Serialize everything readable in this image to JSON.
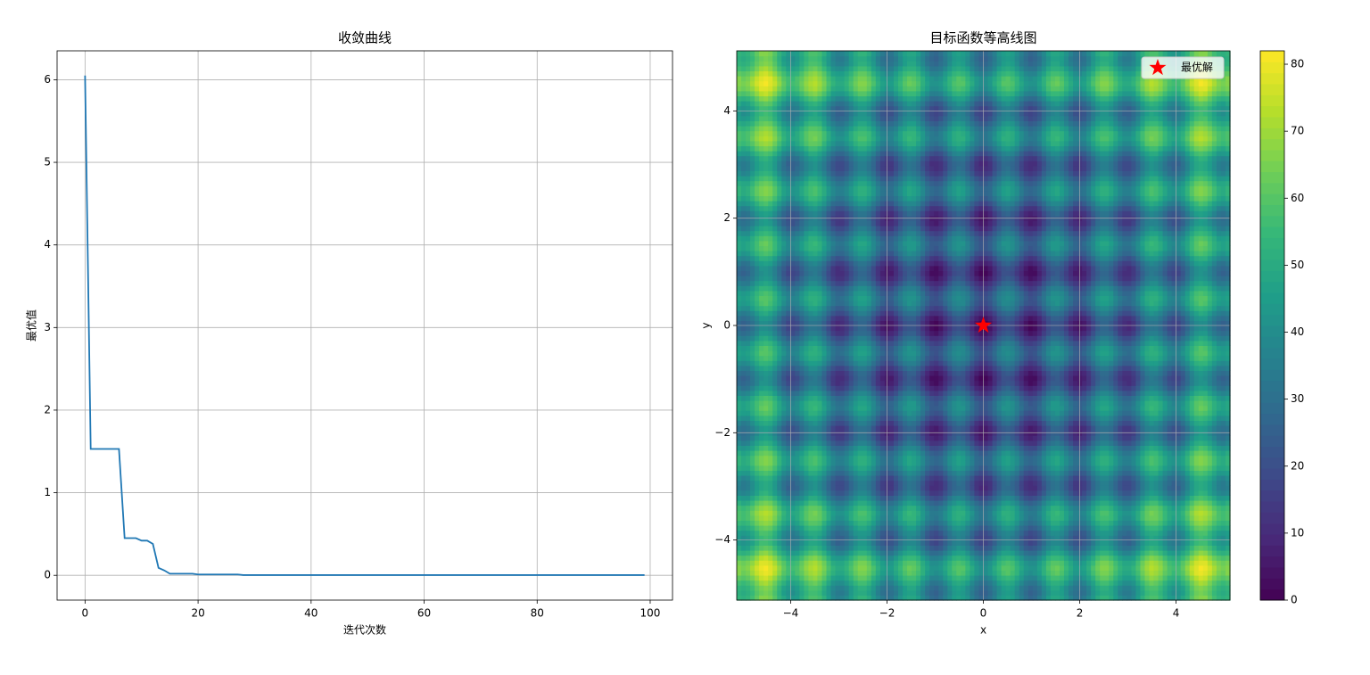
{
  "chart_data": [
    {
      "type": "line",
      "title": "收敛曲线",
      "xlabel": "迭代次数",
      "ylabel": "最优值",
      "color": "#1f77b4",
      "grid": true,
      "xlim": [
        -4.95,
        103.95
      ],
      "ylim": [
        -0.3,
        6.35
      ],
      "xticks": [
        0,
        20,
        40,
        60,
        80,
        100
      ],
      "yticks": [
        0,
        1,
        2,
        3,
        4,
        5,
        6
      ],
      "x": [
        0,
        1,
        2,
        3,
        4,
        5,
        6,
        7,
        8,
        9,
        10,
        11,
        12,
        13,
        14,
        15,
        16,
        17,
        18,
        19,
        20,
        21,
        22,
        23,
        24,
        25,
        26,
        27,
        28,
        29,
        30,
        31,
        32,
        33,
        34,
        35,
        36,
        37,
        38,
        39,
        40,
        41,
        42,
        43,
        44,
        45,
        46,
        47,
        48,
        49,
        50,
        51,
        52,
        53,
        54,
        55,
        56,
        57,
        58,
        59,
        60,
        61,
        62,
        63,
        64,
        65,
        66,
        67,
        68,
        69,
        70,
        71,
        72,
        73,
        74,
        75,
        76,
        77,
        78,
        79,
        80,
        81,
        82,
        83,
        84,
        85,
        86,
        87,
        88,
        89,
        90,
        91,
        92,
        93,
        94,
        95,
        96,
        97,
        98,
        99
      ],
      "values": [
        6.05,
        1.53,
        1.53,
        1.53,
        1.53,
        1.53,
        1.53,
        0.45,
        0.45,
        0.45,
        0.42,
        0.42,
        0.38,
        0.09,
        0.06,
        0.02,
        0.02,
        0.02,
        0.02,
        0.02,
        0.01,
        0.01,
        0.01,
        0.01,
        0.01,
        0.01,
        0.01,
        0.01,
        0.003,
        0.003,
        0.003,
        0.003,
        0.003,
        0.003,
        0.003,
        0.003,
        0.003,
        0.003,
        0.003,
        0.003,
        0.003,
        0.003,
        0.003,
        0.003,
        0.003,
        0.003,
        0.003,
        0.003,
        0.003,
        0.003,
        0.003,
        0.003,
        0.003,
        0.003,
        0.003,
        0.003,
        0.003,
        0.003,
        0.003,
        0.003,
        0.003,
        0.003,
        0.003,
        0.003,
        0.003,
        0.003,
        0.003,
        0.003,
        0.003,
        0.003,
        0.003,
        0.003,
        0.003,
        0.003,
        0.003,
        0.003,
        0.003,
        0.003,
        0.003,
        0.003,
        0.003,
        0.003,
        0.003,
        0.003,
        0.003,
        0.003,
        0.003,
        0.003,
        0.003,
        0.003,
        0.003,
        0.003,
        0.003,
        0.003,
        0.003,
        0.003,
        0.003,
        0.003,
        0.003,
        0.003
      ]
    },
    {
      "type": "contour",
      "title": "目标函数等高线图",
      "xlabel": "x",
      "ylabel": "y",
      "grid": true,
      "colormap": "viridis",
      "xlim": [
        -5.12,
        5.12
      ],
      "ylim": [
        -5.12,
        5.12
      ],
      "xticks": [
        {
          "value": -4,
          "label": "−4"
        },
        {
          "value": -2,
          "label": "−2"
        },
        0,
        2,
        4
      ],
      "yticks": [
        {
          "value": -4,
          "label": "−4"
        },
        {
          "value": -2,
          "label": "−2"
        },
        0,
        2,
        4
      ],
      "clim": [
        0,
        82
      ],
      "cticks": [
        0,
        10,
        20,
        30,
        40,
        50,
        60,
        70,
        80
      ],
      "levels": 50,
      "legend": "upper right",
      "series": [
        {
          "name": "最优解",
          "color": "red",
          "marker": "star",
          "x": [
            0
          ],
          "y": [
            0
          ]
        }
      ]
    }
  ]
}
